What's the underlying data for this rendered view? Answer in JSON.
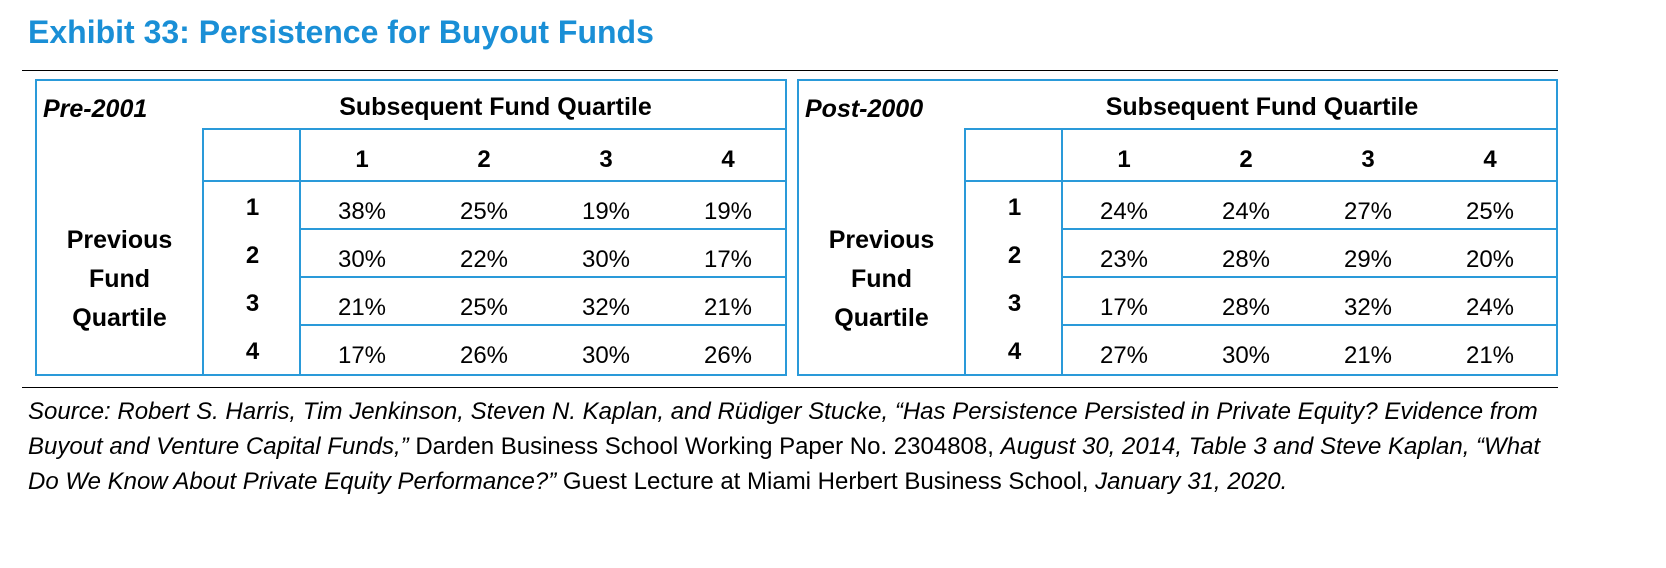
{
  "title": "Exhibit 33: Persistence for Buyout Funds",
  "column_header": "Subsequent Fund Quartile",
  "row_header": [
    "Previous",
    "Fund",
    "Quartile"
  ],
  "quartiles": [
    "1",
    "2",
    "3",
    "4"
  ],
  "panels": [
    {
      "label": "Pre-2001",
      "rows": [
        [
          "38%",
          "25%",
          "19%",
          "19%"
        ],
        [
          "30%",
          "22%",
          "30%",
          "17%"
        ],
        [
          "21%",
          "25%",
          "32%",
          "21%"
        ],
        [
          "17%",
          "26%",
          "30%",
          "26%"
        ]
      ]
    },
    {
      "label": "Post-2000",
      "rows": [
        [
          "24%",
          "24%",
          "27%",
          "25%"
        ],
        [
          "23%",
          "28%",
          "29%",
          "20%"
        ],
        [
          "17%",
          "28%",
          "32%",
          "24%"
        ],
        [
          "27%",
          "30%",
          "21%",
          "21%"
        ]
      ]
    }
  ],
  "source": {
    "part1": "Source: Robert S. Harris, Tim Jenkinson, Steven N. Kaplan, and Rüdiger Stucke, “Has Persistence Persisted in Private Equity? Evidence from Buyout and Venture Capital Funds,”",
    "part2": " Darden Business School Working Paper No. 2304808, ",
    "part3": "August 30, 2014, Table 3 and Steve Kaplan, “What Do We Know About Private Equity Performance?”",
    "part4": " Guest Lecture at Miami Herbert Business School, ",
    "part5": "January 31, 2020."
  },
  "colors": {
    "title": "#1a8fd6",
    "border": "#2a9ad9"
  }
}
